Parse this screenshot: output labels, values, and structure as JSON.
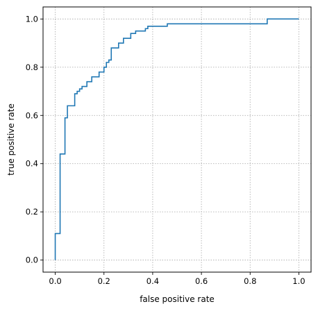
{
  "chart_data": {
    "type": "line",
    "title": "",
    "xlabel": "false positive rate",
    "ylabel": "true positive rate",
    "xlim": [
      -0.05,
      1.05
    ],
    "ylim": [
      -0.05,
      1.05
    ],
    "grid": true,
    "x_ticks": [
      0.0,
      0.2,
      0.4,
      0.6,
      0.8,
      1.0
    ],
    "y_ticks": [
      0.0,
      0.2,
      0.4,
      0.6,
      0.8,
      1.0
    ],
    "x_tick_labels": [
      "0.0",
      "0.2",
      "0.4",
      "0.6",
      "0.8",
      "1.0"
    ],
    "y_tick_labels": [
      "0.0",
      "0.2",
      "0.4",
      "0.6",
      "0.8",
      "1.0"
    ],
    "series": [
      {
        "color": "#1f77b4",
        "step": true,
        "x": [
          0.0,
          0.0,
          0.02,
          0.02,
          0.04,
          0.04,
          0.05,
          0.05,
          0.08,
          0.08,
          0.09,
          0.09,
          0.1,
          0.1,
          0.11,
          0.11,
          0.13,
          0.13,
          0.15,
          0.15,
          0.18,
          0.18,
          0.2,
          0.2,
          0.21,
          0.21,
          0.22,
          0.22,
          0.23,
          0.23,
          0.26,
          0.26,
          0.28,
          0.28,
          0.31,
          0.31,
          0.33,
          0.33,
          0.37,
          0.37,
          0.38,
          0.38,
          0.39,
          0.39,
          0.46,
          0.46,
          0.87,
          0.87,
          1.0
        ],
        "y": [
          0.0,
          0.11,
          0.11,
          0.44,
          0.44,
          0.59,
          0.59,
          0.64,
          0.64,
          0.69,
          0.69,
          0.7,
          0.7,
          0.71,
          0.71,
          0.72,
          0.72,
          0.74,
          0.74,
          0.76,
          0.76,
          0.78,
          0.78,
          0.8,
          0.8,
          0.82,
          0.82,
          0.83,
          0.83,
          0.88,
          0.88,
          0.9,
          0.9,
          0.92,
          0.92,
          0.94,
          0.94,
          0.95,
          0.95,
          0.96,
          0.96,
          0.97,
          0.97,
          0.97,
          0.97,
          0.98,
          0.98,
          1.0,
          1.0
        ]
      }
    ]
  }
}
